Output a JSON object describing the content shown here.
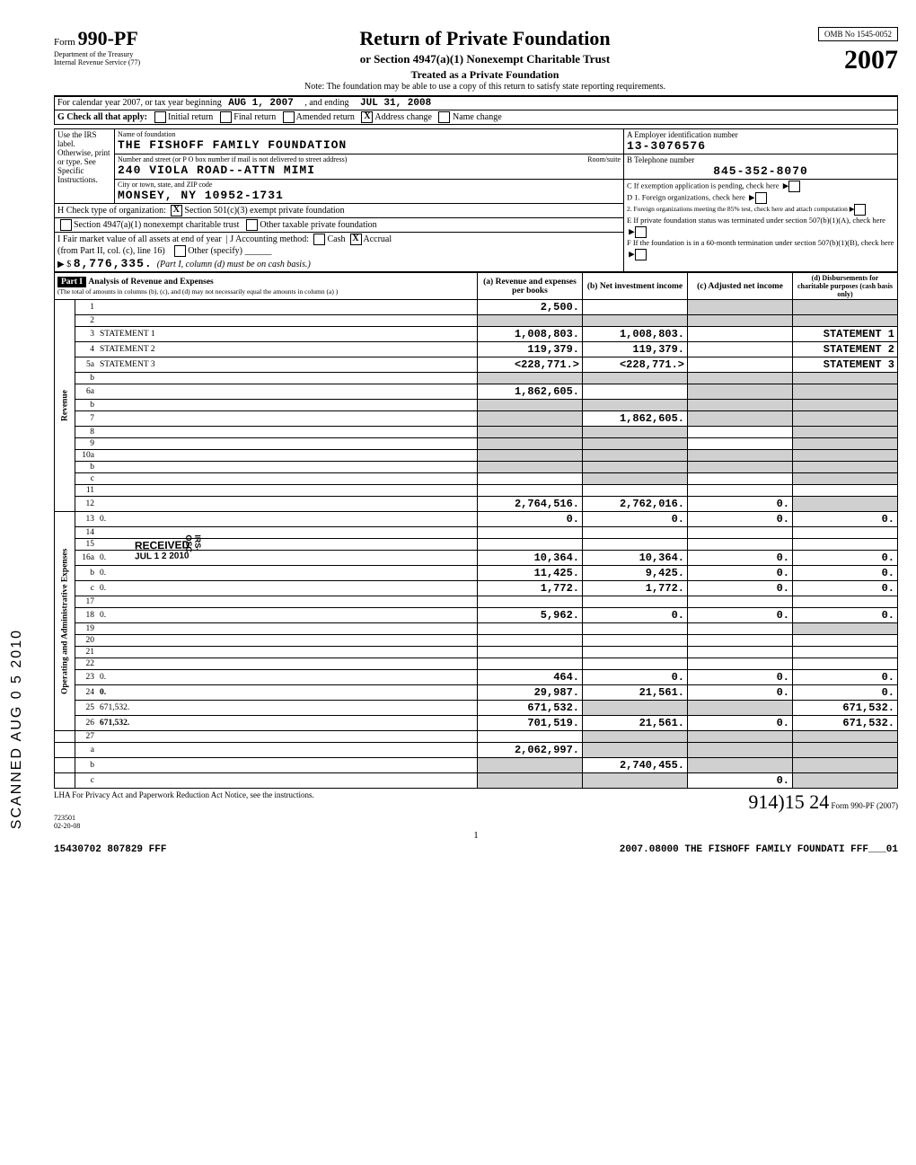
{
  "header": {
    "form_label": "Form",
    "form_number": "990-PF",
    "dept1": "Department of the Treasury",
    "dept2": "Internal Revenue Service (77)",
    "title": "Return of Private Foundation",
    "subtitle1": "or Section 4947(a)(1) Nonexempt Charitable Trust",
    "subtitle2": "Treated as a Private Foundation",
    "note": "Note: The foundation may be able to use a copy of this return to satisfy state reporting requirements.",
    "omb": "OMB No 1545-0052",
    "year": "2007"
  },
  "cal_row": {
    "prefix": "For calendar year 2007, or tax year beginning",
    "begin": "AUG 1, 2007",
    "mid": ", and ending",
    "end": "JUL 31, 2008"
  },
  "g_row": {
    "label": "G  Check all that apply:",
    "opts": [
      "Initial return",
      "Final return",
      "Amended return",
      "Address change",
      "Name change"
    ],
    "checked_idx": 3
  },
  "name_block": {
    "use_irs": "Use the IRS label. Otherwise, print or type. See Specific Instructions.",
    "name_label": "Name of foundation",
    "name": "THE FISHOFF FAMILY FOUNDATION",
    "addr_label": "Number and street (or P O  box number if mail is not delivered to street address)",
    "addr": "240 VIOLA ROAD--ATTN MIMI",
    "room_label": "Room/suite",
    "city_label": "City or town, state, and ZIP code",
    "city": "MONSEY, NY  10952-1731",
    "a_label": "A  Employer identification number",
    "ein": "13-3076576",
    "b_label": "B  Telephone number",
    "phone": "845-352-8070",
    "c_label": "C  If exemption application is pending, check here",
    "d1_label": "D  1. Foreign organizations, check here",
    "d2_label": "2. Foreign organizations meeting the 85% test, check here and attach computation",
    "e_label": "E  If private foundation status was terminated under section 507(b)(1)(A), check here",
    "f_label": "F  If the foundation is in a 60-month termination under section 507(b)(1)(B), check here"
  },
  "h_row": {
    "label": "H  Check type of organization:",
    "opt1": "Section 501(c)(3) exempt private foundation",
    "opt2": "Section 4947(a)(1) nonexempt charitable trust",
    "opt3": "Other taxable private foundation"
  },
  "i_row": {
    "label": "I  Fair market value of all assets at end of year",
    "from": "(from Part II, col. (c), line 16)",
    "arrow": "▶ $",
    "value": "8,776,335.",
    "j_label": "J  Accounting method:",
    "j_opts": [
      "Cash",
      "Accrual"
    ],
    "j_other": "Other (specify)",
    "j_note": "(Part I, column (d) must be on cash basis.)"
  },
  "part1_header": {
    "part": "Part I",
    "title": "Analysis of Revenue and Expenses",
    "sub": "(The total of amounts in columns (b), (c), and (d) may not necessarily equal the amounts in column (a) )",
    "col_a": "(a) Revenue and expenses per books",
    "col_b": "(b) Net investment income",
    "col_c": "(c) Adjusted net income",
    "col_d": "(d) Disbursements for charitable purposes (cash basis only)"
  },
  "sections": {
    "revenue": "Revenue",
    "expenses": "Operating and Administrative Expenses"
  },
  "rows": [
    {
      "n": "1",
      "d": "",
      "a": "2,500.",
      "b": "",
      "c": "",
      "shade": [
        "c",
        "d"
      ],
      "sec": "rev"
    },
    {
      "n": "2",
      "d": "",
      "a": "",
      "b": "",
      "c": "",
      "shade": [
        "a",
        "b",
        "c",
        "d"
      ],
      "sec": "rev"
    },
    {
      "n": "3",
      "d": "STATEMENT  1",
      "a": "1,008,803.",
      "b": "1,008,803.",
      "c": "",
      "sec": "rev"
    },
    {
      "n": "4",
      "d": "STATEMENT  2",
      "a": "119,379.",
      "b": "119,379.",
      "c": "",
      "sec": "rev"
    },
    {
      "n": "5a",
      "d": "STATEMENT  3",
      "a": "<228,771.>",
      "b": "<228,771.>",
      "c": "",
      "sec": "rev"
    },
    {
      "n": "b",
      "d": "",
      "a": "",
      "b": "",
      "c": "",
      "shade": [
        "a",
        "b",
        "c",
        "d"
      ],
      "sec": "rev"
    },
    {
      "n": "6a",
      "d": "",
      "a": "1,862,605.",
      "b": "",
      "c": "",
      "shade": [
        "c",
        "d"
      ],
      "sec": "rev"
    },
    {
      "n": "b",
      "d": "",
      "a": "",
      "b": "",
      "c": "",
      "shade": [
        "a",
        "b",
        "c",
        "d"
      ],
      "sec": "rev"
    },
    {
      "n": "7",
      "d": "",
      "a": "",
      "b": "1,862,605.",
      "c": "",
      "shade": [
        "a",
        "c",
        "d"
      ],
      "sec": "rev"
    },
    {
      "n": "8",
      "d": "",
      "a": "",
      "b": "",
      "c": "",
      "shade": [
        "a",
        "b",
        "d"
      ],
      "sec": "rev"
    },
    {
      "n": "9",
      "d": "",
      "a": "",
      "b": "",
      "c": "",
      "shade": [
        "a",
        "b",
        "d"
      ],
      "sec": "rev"
    },
    {
      "n": "10a",
      "d": "",
      "a": "",
      "b": "",
      "c": "",
      "shade": [
        "a",
        "b",
        "c",
        "d"
      ],
      "sec": "rev"
    },
    {
      "n": "b",
      "d": "",
      "a": "",
      "b": "",
      "c": "",
      "shade": [
        "a",
        "b",
        "c",
        "d"
      ],
      "sec": "rev"
    },
    {
      "n": "c",
      "d": "",
      "a": "",
      "b": "",
      "c": "",
      "shade": [
        "b",
        "d"
      ],
      "sec": "rev"
    },
    {
      "n": "11",
      "d": "",
      "a": "",
      "b": "",
      "c": "",
      "sec": "rev"
    },
    {
      "n": "12",
      "d": "",
      "a": "2,764,516.",
      "b": "2,762,016.",
      "c": "0.",
      "shade": [
        "d"
      ],
      "sec": "rev",
      "bold": true
    },
    {
      "n": "13",
      "d": "0.",
      "a": "0.",
      "b": "0.",
      "c": "0.",
      "sec": "exp"
    },
    {
      "n": "14",
      "d": "",
      "a": "",
      "b": "",
      "c": "",
      "sec": "exp"
    },
    {
      "n": "15",
      "d": "",
      "a": "",
      "b": "",
      "c": "",
      "sec": "exp"
    },
    {
      "n": "16a",
      "d": "0.",
      "a": "10,364.",
      "b": "10,364.",
      "c": "0.",
      "sec": "exp"
    },
    {
      "n": "b",
      "d": "0.",
      "a": "11,425.",
      "b": "9,425.",
      "c": "0.",
      "sec": "exp"
    },
    {
      "n": "c",
      "d": "0.",
      "a": "1,772.",
      "b": "1,772.",
      "c": "0.",
      "sec": "exp"
    },
    {
      "n": "17",
      "d": "",
      "a": "",
      "b": "",
      "c": "",
      "sec": "exp"
    },
    {
      "n": "18",
      "d": "0.",
      "a": "5,962.",
      "b": "0.",
      "c": "0.",
      "sec": "exp"
    },
    {
      "n": "19",
      "d": "",
      "a": "",
      "b": "",
      "c": "",
      "shade": [
        "d"
      ],
      "sec": "exp"
    },
    {
      "n": "20",
      "d": "",
      "a": "",
      "b": "",
      "c": "",
      "sec": "exp"
    },
    {
      "n": "21",
      "d": "",
      "a": "",
      "b": "",
      "c": "",
      "sec": "exp"
    },
    {
      "n": "22",
      "d": "",
      "a": "",
      "b": "",
      "c": "",
      "sec": "exp"
    },
    {
      "n": "23",
      "d": "0.",
      "a": "464.",
      "b": "0.",
      "c": "0.",
      "sec": "exp"
    },
    {
      "n": "24",
      "d": "0.",
      "a": "29,987.",
      "b": "21,561.",
      "c": "0.",
      "sec": "exp",
      "bold": true
    },
    {
      "n": "25",
      "d": "671,532.",
      "a": "671,532.",
      "b": "",
      "c": "",
      "shade": [
        "b",
        "c"
      ],
      "sec": "exp"
    },
    {
      "n": "26",
      "d": "671,532.",
      "a": "701,519.",
      "b": "21,561.",
      "c": "0.",
      "sec": "exp",
      "bold": true
    },
    {
      "n": "27",
      "d": "",
      "a": "",
      "b": "",
      "c": "",
      "shade": [
        "b",
        "c",
        "d"
      ],
      "sec": "none"
    },
    {
      "n": "a",
      "d": "",
      "a": "2,062,997.",
      "b": "",
      "c": "",
      "shade": [
        "b",
        "c",
        "d"
      ],
      "sec": "none"
    },
    {
      "n": "b",
      "d": "",
      "a": "",
      "b": "2,740,455.",
      "c": "",
      "shade": [
        "a",
        "c",
        "d"
      ],
      "sec": "none"
    },
    {
      "n": "c",
      "d": "",
      "a": "",
      "b": "",
      "c": "0.",
      "shade": [
        "a",
        "b",
        "d"
      ],
      "sec": "none"
    }
  ],
  "footer": {
    "lha": "LHA   For Privacy Act and Paperwork Reduction Act Notice, see the instructions.",
    "form": "Form 990-PF (2007)",
    "code1": "723501",
    "code2": "02-20-08",
    "bottom_left": "15430702 807829 FFF",
    "bottom_mid": "2007.08000 THE FISHOFF FAMILY FOUNDATI FFF___01",
    "page": "1",
    "sig": "914)15  24"
  },
  "side": {
    "scanned": "SCANNED  AUG 0 5 2010"
  },
  "stamps": {
    "received": "RECEIVED",
    "jul": "JUL 1 2 2010",
    "irs": "IRS-OSC"
  }
}
